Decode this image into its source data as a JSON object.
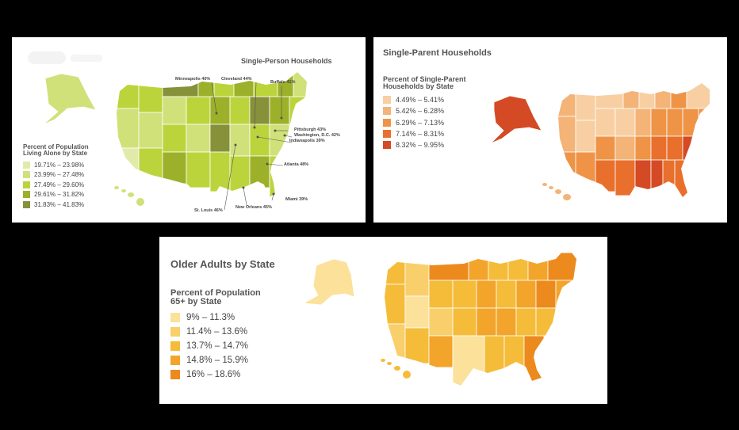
{
  "panels": [
    {
      "title": "Single-Person Households",
      "legend_title": "Percent of Population\nLiving Alone by State",
      "legend": [
        {
          "label": "19.71% – 23.98%",
          "color": "#e2eaaa"
        },
        {
          "label": "23.99% – 27.48%",
          "color": "#d0e17a"
        },
        {
          "label": "27.49% – 29.60%",
          "color": "#bcd43c"
        },
        {
          "label": "29.61% – 31.82%",
          "color": "#9cb02a"
        },
        {
          "label": "31.83% – 41.83%",
          "color": "#86913a"
        }
      ],
      "callouts": [
        "Minneapolis 40%",
        "Cleveland 44%",
        "Buffalo 41%",
        "Pittsburgh 43%",
        "Washington, D.C. 42%",
        "Indianapolis 39%",
        "Atlanta 48%",
        "Miami 39%",
        "New Orleans 45%",
        "St. Louis 46%"
      ]
    },
    {
      "title": "Single-Parent Households",
      "legend_title": "Percent of Single-Parent\nHouseholds by State",
      "legend": [
        {
          "label": "4.49% – 5.41%",
          "color": "#f7cfa3"
        },
        {
          "label": "5.42% – 6.28%",
          "color": "#f4b377"
        },
        {
          "label": "6.29% – 7.13%",
          "color": "#ef9447"
        },
        {
          "label": "7.14% – 8.31%",
          "color": "#e8702c"
        },
        {
          "label": "8.32% – 9.95%",
          "color": "#d44a24"
        }
      ]
    },
    {
      "title": "Older Adults by State",
      "legend_title": "Percent of Population\n65+ by State",
      "legend": [
        {
          "label": "9% – 11.3%",
          "color": "#fbe19a"
        },
        {
          "label": "11.4% – 13.6%",
          "color": "#f8cf6b"
        },
        {
          "label": "13.7% – 14.7%",
          "color": "#f5bc3a"
        },
        {
          "label": "14.8% – 15.9%",
          "color": "#f2a52a"
        },
        {
          "label": "16% – 18.6%",
          "color": "#ec8a1d"
        }
      ]
    }
  ]
}
